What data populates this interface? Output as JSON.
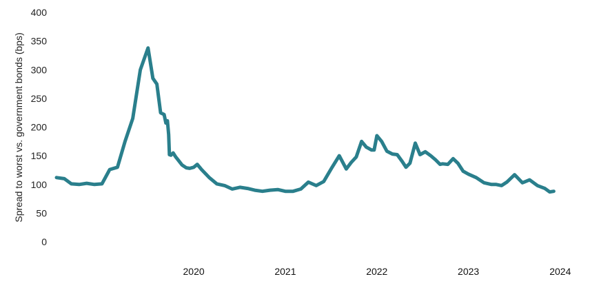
{
  "chart_data": {
    "type": "line",
    "title": "",
    "xlabel": "",
    "ylabel": "Spread to worst vs. government bonds (bps)",
    "ylim": [
      0,
      400
    ],
    "yticks": [
      0,
      50,
      100,
      150,
      200,
      250,
      300,
      350,
      400
    ],
    "xlim": [
      "2019-01-01",
      "2024-06-15"
    ],
    "xticks": [
      {
        "label": "2020",
        "date": "2020-07-01"
      },
      {
        "label": "2021",
        "date": "2021-07-01"
      },
      {
        "label": "2022",
        "date": "2022-07-01"
      },
      {
        "label": "2023",
        "date": "2023-07-01"
      },
      {
        "label": "2024",
        "date": "2024-07-01"
      }
    ],
    "grid": false,
    "line_color": "#2a7f8c",
    "series": [
      {
        "name": "",
        "x": [
          "2019-01-01",
          "2019-02-01",
          "2019-03-01",
          "2019-04-01",
          "2019-05-01",
          "2019-06-01",
          "2019-07-01",
          "2019-08-01",
          "2019-09-01",
          "2019-10-01",
          "2019-11-01",
          "2019-12-01",
          "2020-01-01",
          "2020-01-20",
          "2020-02-05",
          "2020-02-20",
          "2020-03-05",
          "2020-03-12",
          "2020-03-18",
          "2020-03-23",
          "2020-03-26",
          "2020-04-01",
          "2020-04-10",
          "2020-04-20",
          "2020-05-01",
          "2020-05-15",
          "2020-06-01",
          "2020-06-15",
          "2020-07-01",
          "2020-07-15",
          "2020-08-01",
          "2020-09-01",
          "2020-10-01",
          "2020-11-01",
          "2020-12-01",
          "2021-01-01",
          "2021-02-01",
          "2021-03-01",
          "2021-04-01",
          "2021-05-01",
          "2021-06-01",
          "2021-07-01",
          "2021-08-01",
          "2021-09-01",
          "2021-10-01",
          "2021-11-01",
          "2021-12-01",
          "2022-01-01",
          "2022-02-01",
          "2022-03-01",
          "2022-03-20",
          "2022-04-10",
          "2022-05-01",
          "2022-05-20",
          "2022-06-10",
          "2022-06-20",
          "2022-07-01",
          "2022-07-20",
          "2022-08-10",
          "2022-09-01",
          "2022-09-20",
          "2022-10-10",
          "2022-10-25",
          "2022-11-10",
          "2022-12-01",
          "2022-12-20",
          "2023-01-10",
          "2023-02-01",
          "2023-02-20",
          "2023-03-10",
          "2023-03-20",
          "2023-04-10",
          "2023-05-01",
          "2023-05-20",
          "2023-06-10",
          "2023-07-01",
          "2023-08-01",
          "2023-09-01",
          "2023-10-01",
          "2023-10-20",
          "2023-11-10",
          "2023-12-01",
          "2024-01-01",
          "2024-02-01",
          "2024-03-01",
          "2024-04-01",
          "2024-05-01",
          "2024-05-20",
          "2024-06-05"
        ],
        "y": [
          112,
          110,
          101,
          100,
          102,
          100,
          101,
          126,
          130,
          175,
          215,
          300,
          338,
          285,
          275,
          225,
          222,
          207,
          211,
          187,
          152,
          151,
          155,
          148,
          142,
          134,
          129,
          128,
          130,
          135,
          126,
          112,
          101,
          98,
          92,
          95,
          93,
          90,
          88,
          90,
          91,
          88,
          88,
          92,
          104,
          98,
          105,
          128,
          150,
          127,
          138,
          148,
          175,
          165,
          160,
          160,
          185,
          175,
          158,
          153,
          152,
          140,
          130,
          137,
          172,
          152,
          157,
          150,
          143,
          135,
          136,
          135,
          145,
          137,
          123,
          118,
          112,
          103,
          100,
          100,
          98,
          104,
          117,
          103,
          108,
          98,
          93,
          87,
          88
        ]
      }
    ]
  }
}
